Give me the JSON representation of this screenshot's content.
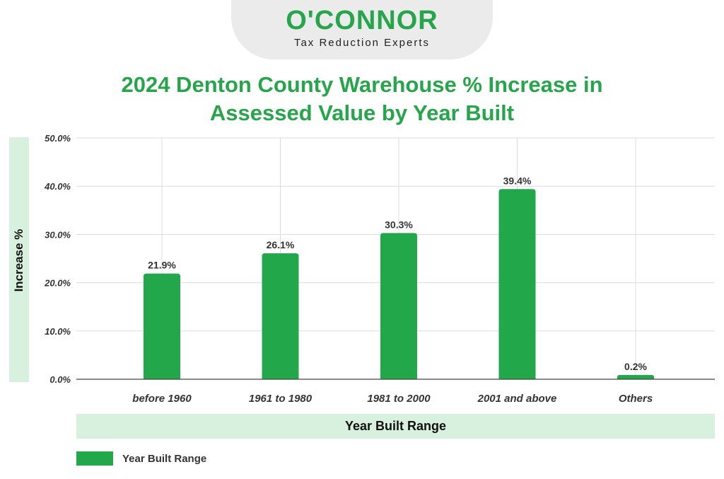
{
  "brand": {
    "name": "O'CONNOR",
    "tagline": "Tax Reduction Experts"
  },
  "colors": {
    "accent": "#27a54b",
    "bar": "#22a84a",
    "band": "#d8f0de"
  },
  "chart_data": {
    "type": "bar",
    "title_lines": [
      "2024 Denton County Warehouse % Increase in",
      "Assessed Value by Year Built"
    ],
    "xlabel": "Year Built Range",
    "ylabel": "Increase %",
    "categories": [
      "before 1960",
      "1961 to 1980",
      "1981 to 2000",
      "2001 and above",
      "Others"
    ],
    "series": [
      {
        "name": "Year Built Range",
        "values": [
          21.9,
          26.1,
          30.3,
          39.4,
          0.2
        ],
        "data_labels": [
          "21.9%",
          "26.1%",
          "30.3%",
          "39.4%",
          "0.2%"
        ]
      }
    ],
    "ylim": [
      0,
      50
    ],
    "yticks": [
      0,
      10,
      20,
      30,
      40,
      50
    ],
    "ytick_labels": [
      "0.0%",
      "10.0%",
      "20.0%",
      "30.0%",
      "40.0%",
      "50.0%"
    ],
    "grid": true,
    "legend": "bottom-left"
  }
}
